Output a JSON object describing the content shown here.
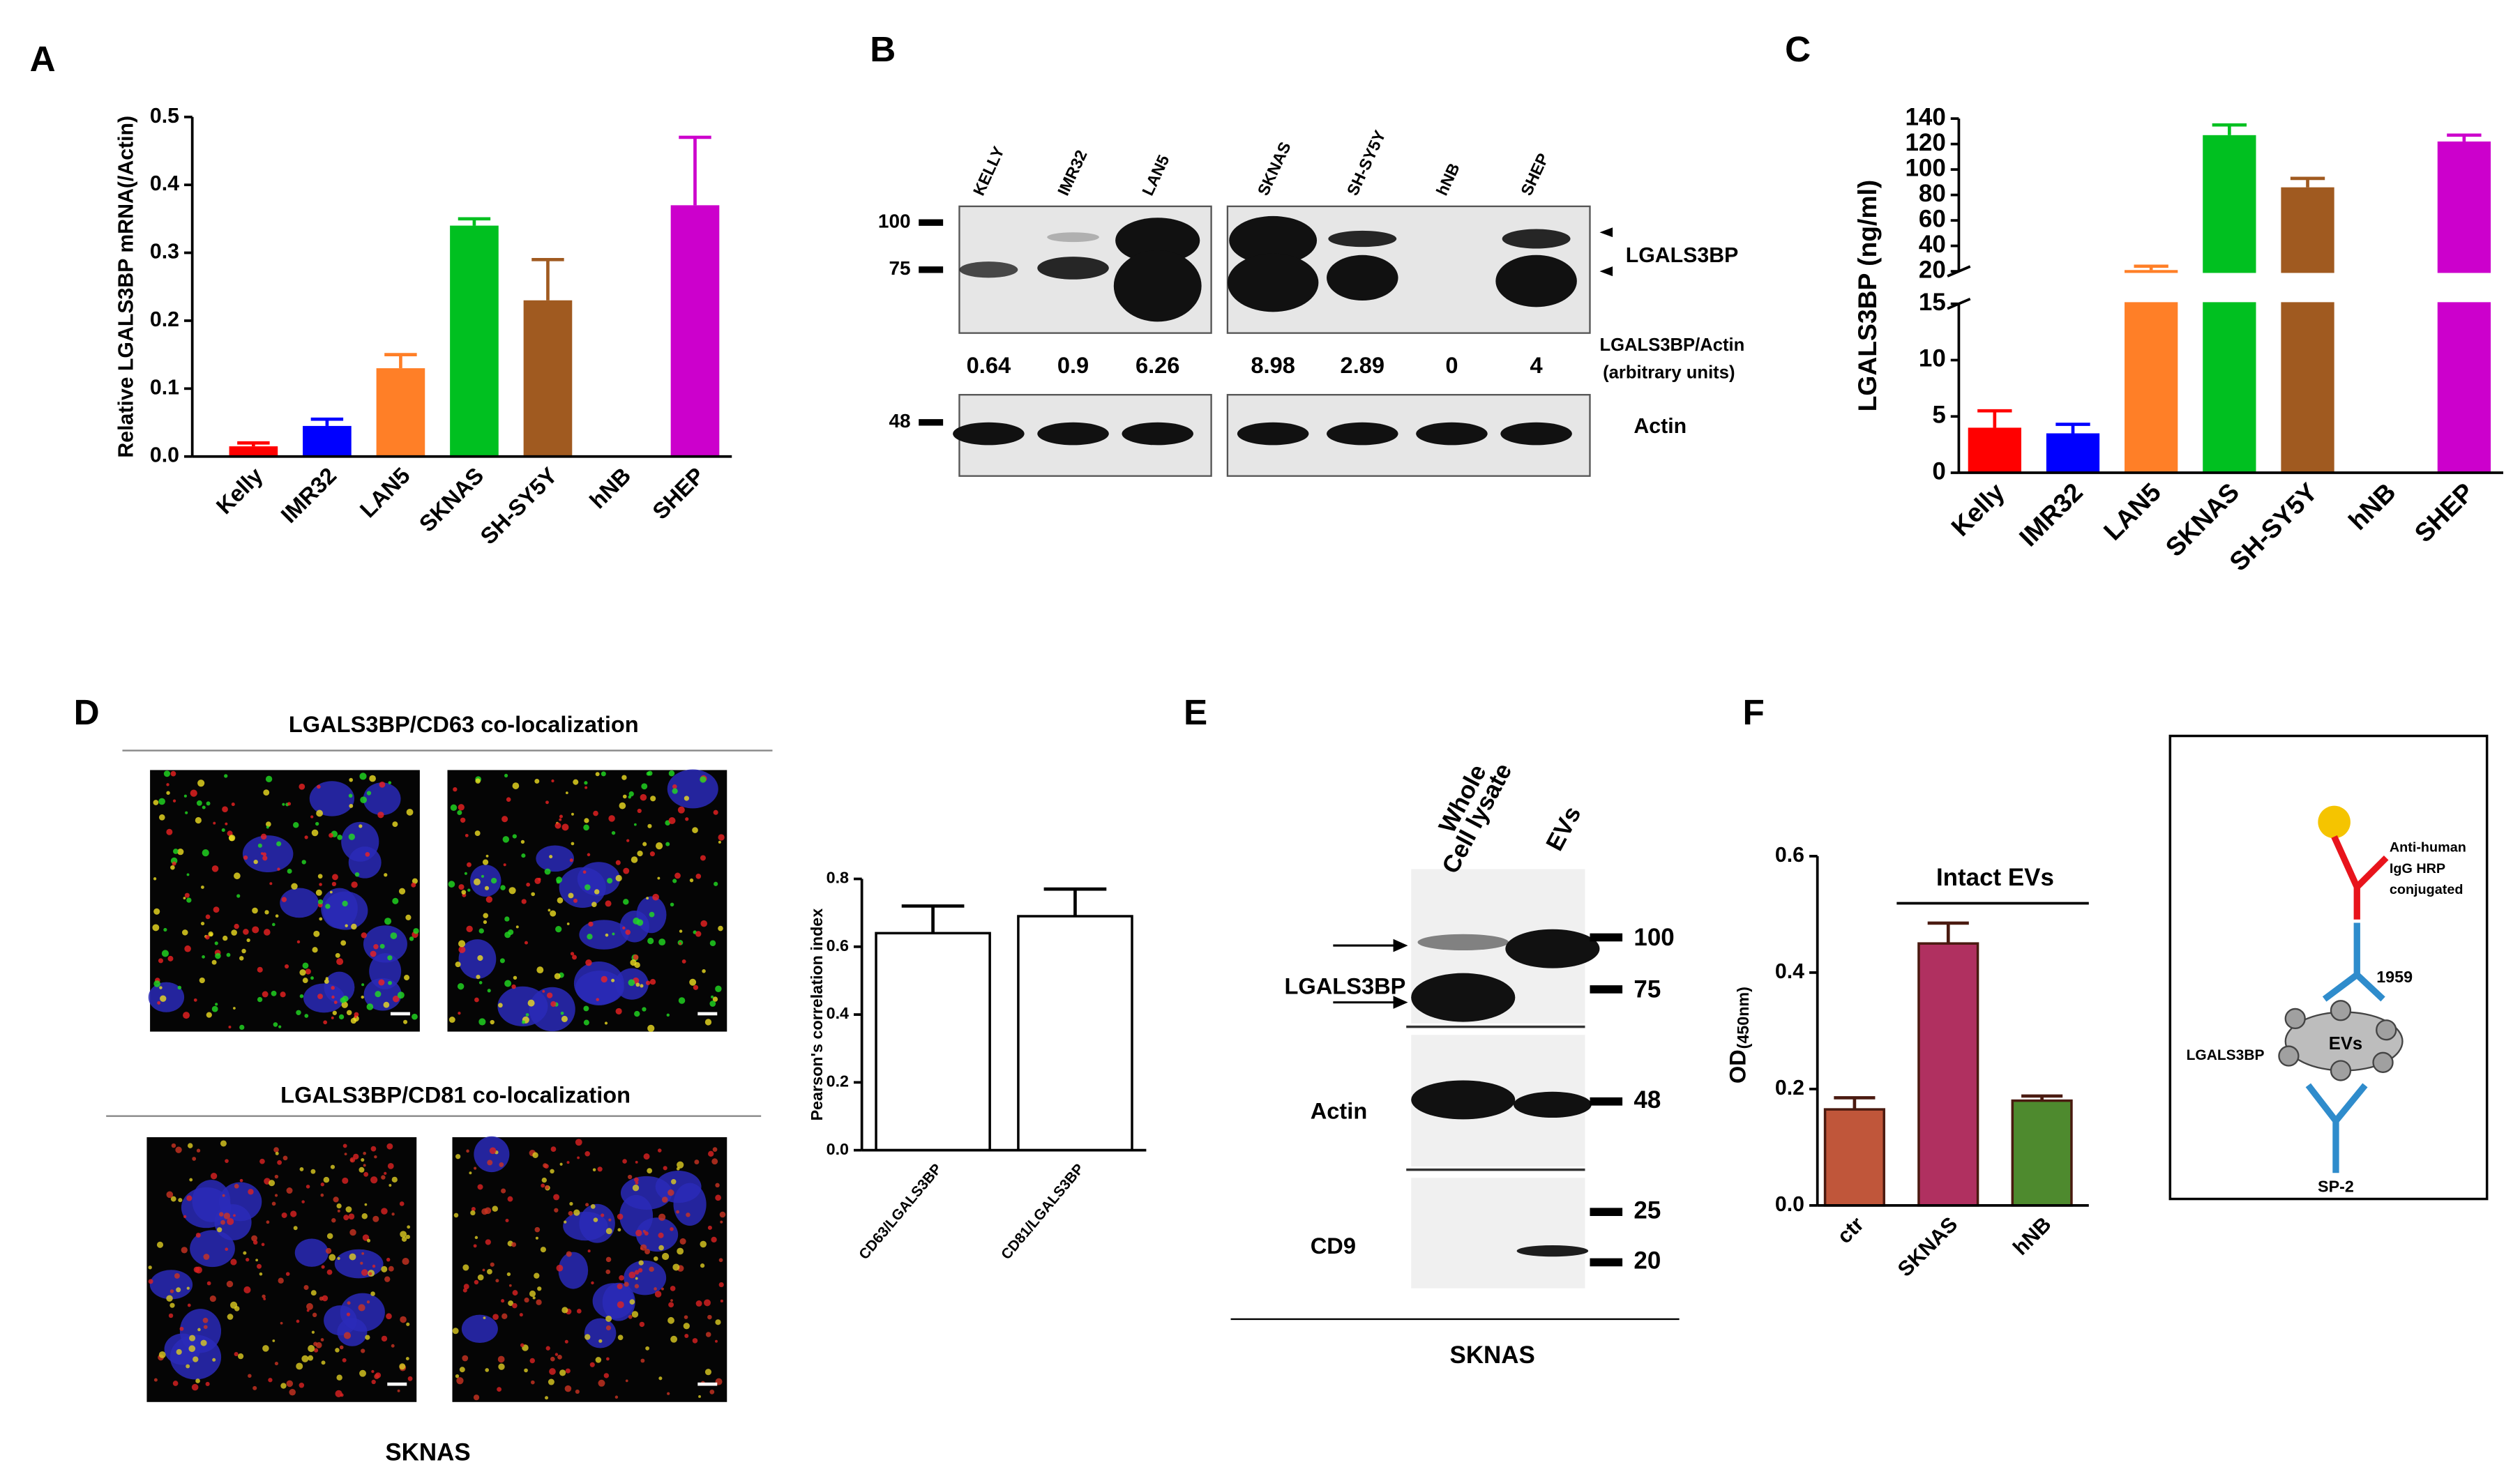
{
  "panel_labels": [
    "A",
    "B",
    "C",
    "D",
    "E",
    "F"
  ],
  "chart_data": [
    {
      "type": "bar",
      "ylabel": "Relative LGALS3BP mRNA(/Actin)",
      "categories": [
        "Kelly",
        "IMR32",
        "LAN5",
        "SKNAS",
        "SH-SY5Y",
        "hNB",
        "SHEP"
      ],
      "values": [
        0.015,
        0.045,
        0.13,
        0.34,
        0.23,
        0,
        0.37
      ],
      "errors": [
        0.005,
        0.01,
        0.02,
        0.01,
        0.06,
        0,
        0.1
      ],
      "colors": [
        "#ff0000",
        "#0000ff",
        "#ff7f27",
        "#00c020",
        "#a05a20",
        "#7f7f7f",
        "#cc00cc"
      ],
      "ylim": [
        0,
        0.5
      ],
      "yticks": [
        {
          "value": 0,
          "label": "0.0"
        },
        0.1,
        0.2,
        0.3,
        0.4,
        0.5
      ]
    },
    {
      "type": "bar",
      "ylabel": "LGALS3BP (ng/ml)",
      "categories": [
        "Kelly",
        "IMR32",
        "LAN5",
        "SKNAS",
        "SH-SY5Y",
        "hNB",
        "SHEP"
      ],
      "values": [
        4,
        3.5,
        21,
        127,
        86,
        0,
        122
      ],
      "errors": [
        1.5,
        0.8,
        3,
        8,
        7,
        0,
        5
      ],
      "colors": [
        "#ff0000",
        "#0000ff",
        "#ff7f27",
        "#00c020",
        "#a05a20",
        "#7f7f7f",
        "#cc00cc"
      ],
      "ylim": [
        0,
        140
      ],
      "axis_break": [
        15,
        20
      ],
      "yticks": [
        0,
        5,
        10,
        15,
        20,
        40,
        60,
        80,
        100,
        120,
        140
      ]
    },
    {
      "type": "bar",
      "ylabel": "Pearson's correlation index",
      "categories": [
        "CD63/LGALS3BP",
        "CD81/LGALS3BP"
      ],
      "values": [
        0.64,
        0.69
      ],
      "errors": [
        0.08,
        0.08
      ],
      "colors": [
        "#ffffff",
        "#ffffff"
      ],
      "edgecolor": "#000000",
      "ylim": [
        0,
        0.8
      ],
      "yticks": [
        {
          "value": 0,
          "label": "0.0"
        },
        0.2,
        0.4,
        0.6,
        0.8
      ]
    },
    {
      "type": "bar",
      "ylabel": "OD",
      "ylabel_sub": "(450nm)",
      "annotation": "Intact EVs",
      "categories": [
        "ctr",
        "SKNAS",
        "hNB"
      ],
      "values": [
        0.165,
        0.45,
        0.18
      ],
      "errors": [
        0.02,
        0.035,
        0.008
      ],
      "colors": [
        "#c0563a",
        "#b03060",
        "#4e8a2e"
      ],
      "edgecolor": "#4a1a10",
      "ylim": [
        0,
        0.6
      ],
      "yticks": [
        {
          "value": 0,
          "label": "0.0"
        },
        0.2,
        0.4,
        0.6
      ]
    }
  ],
  "blot_b": {
    "lanes": [
      "KELLY",
      "IMR32",
      "LAN5",
      "SKNAS",
      "SH-SY5Y",
      "hNB",
      "SHEP"
    ],
    "markers": [
      "100",
      "75",
      "48"
    ],
    "band_label": "LGALS3BP",
    "ratio_label": "LGALS3BP/Actin",
    "ratio_units": "(arbitrary units)",
    "ratios": [
      "0.64",
      "0.9",
      "6.26",
      "8.98",
      "2.89",
      "0",
      "4"
    ],
    "loading_label": "Actin"
  },
  "micrographs_d": {
    "title_1": "LGALS3BP/CD63 co-localization",
    "title_2": "LGALS3BP/CD81 co-localization",
    "cell_line": "SKNAS"
  },
  "blot_e": {
    "lanes": [
      "Whole",
      "Cell lysate",
      "EVs"
    ],
    "rows": [
      "LGALS3BP",
      "Actin",
      "CD9"
    ],
    "markers": [
      "100",
      "75",
      "48",
      "25",
      "20"
    ],
    "cell_line": "SKNAS"
  },
  "diagram_f": {
    "antibody_label": [
      "Anti-human",
      "IgG HRP",
      "conjugated"
    ],
    "capture_label": "1959",
    "vesicle_label": "EVs",
    "target_label": "LGALS3BP",
    "detect_label": "SP-2"
  }
}
